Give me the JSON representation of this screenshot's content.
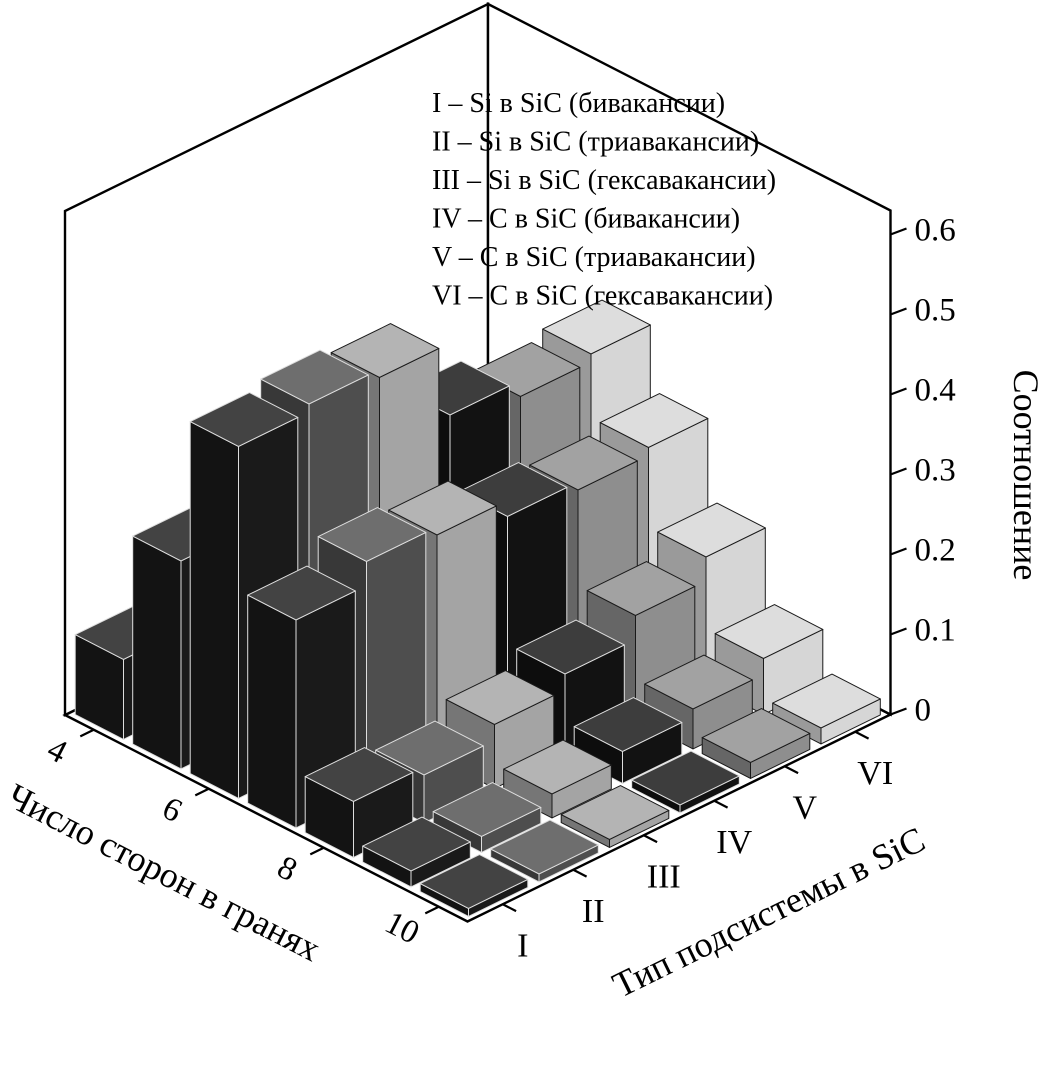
{
  "figure": {
    "background": "#ffffff"
  },
  "chart_data": {
    "type": "bar",
    "projection": "3d",
    "title": "",
    "category_axis": {
      "label": "Тип подсистемы в SiC",
      "categories": [
        "I",
        "II",
        "III",
        "IV",
        "V",
        "VI"
      ]
    },
    "depth_axis": {
      "label": "Число сторон в гранях",
      "values": [
        4,
        5,
        6,
        7,
        8,
        9,
        10
      ],
      "tick_labels": [
        "4",
        "6",
        "8",
        "10"
      ]
    },
    "value_axis": {
      "label": "Соотношение",
      "tick_values": [
        0,
        0.1,
        0.2,
        0.3,
        0.4,
        0.5,
        0.6
      ],
      "tick_labels": [
        "0",
        "0.1",
        "0.2",
        "0.3",
        "0.4",
        "0.5",
        "0.6"
      ],
      "min": 0,
      "max": 0.65
    },
    "legend": {
      "items": [
        "I – Si в SiC (бивакансии)",
        "II – Si в SiC (триавакансии)",
        "III – Si в SiC (гексавакансии)",
        "IV – C в SiC (бивакансии)",
        "V – C в SiC (триавакансии)",
        "VI – C в SiC (гексавакансии)"
      ]
    },
    "series": [
      {
        "name": "I",
        "color": "#1a1a1a",
        "values": [
          0.1,
          0.26,
          0.44,
          0.26,
          0.07,
          0.02,
          0.01
        ]
      },
      {
        "name": "II",
        "color": "#4e4e4e",
        "values": [
          0.09,
          0.25,
          0.45,
          0.29,
          0.06,
          0.02,
          0.01
        ]
      },
      {
        "name": "III",
        "color": "#a4a4a4",
        "values": [
          0.08,
          0.23,
          0.44,
          0.28,
          0.08,
          0.03,
          0.01
        ]
      },
      {
        "name": "IV",
        "color": "#121212",
        "values": [
          0.08,
          0.21,
          0.35,
          0.26,
          0.1,
          0.04,
          0.01
        ]
      },
      {
        "name": "V",
        "color": "#8e8e8e",
        "values": [
          0.07,
          0.2,
          0.33,
          0.25,
          0.13,
          0.05,
          0.02
        ]
      },
      {
        "name": "VI",
        "color": "#d6d6d6",
        "values": [
          0.06,
          0.18,
          0.34,
          0.26,
          0.16,
          0.07,
          0.02
        ]
      }
    ]
  }
}
